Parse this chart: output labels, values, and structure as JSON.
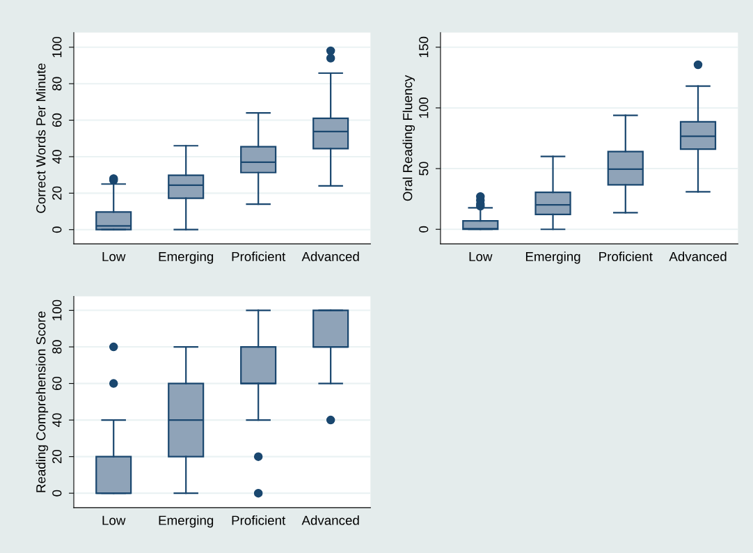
{
  "chart_data": [
    {
      "type": "box",
      "ylabel": "Correct Words Per Minute",
      "categories": [
        "Low",
        "Emerging",
        "Proficient",
        "Advanced"
      ],
      "ylim": [
        -7.8,
        108
      ],
      "yticks": [
        0,
        20,
        40,
        60,
        80,
        100
      ],
      "grid": "y",
      "color": "#8fa3b8",
      "boxes": [
        {
          "low": 0,
          "q1": 0,
          "median": 2,
          "q3": 9.7,
          "high": 25,
          "outliers": [
            27,
            28
          ]
        },
        {
          "low": 0,
          "q1": 17.2,
          "median": 24.4,
          "q3": 29.8,
          "high": 46
        },
        {
          "low": 14,
          "q1": 31.3,
          "median": 37,
          "q3": 45.5,
          "high": 64
        },
        {
          "low": 24,
          "q1": 44.4,
          "median": 53.8,
          "q3": 61,
          "high": 85.8,
          "outliers": [
            94,
            98
          ]
        }
      ]
    },
    {
      "type": "box",
      "ylabel": "Oral Reading Fluency",
      "categories": [
        "Low",
        "Emerging",
        "Proficient",
        "Advanced"
      ],
      "ylim": [
        -12,
        162
      ],
      "yticks": [
        0,
        50,
        100,
        150
      ],
      "grid": "y",
      "color": "#8fa3b8",
      "boxes": [
        {
          "low": 0,
          "q1": 0,
          "median": 0.5,
          "q3": 6.9,
          "high": 17.7,
          "outliers": [
            19,
            21,
            24,
            27
          ]
        },
        {
          "low": 0,
          "q1": 12.2,
          "median": 20.2,
          "q3": 30.5,
          "high": 60
        },
        {
          "low": 13.7,
          "q1": 36.6,
          "median": 49.6,
          "q3": 64,
          "high": 93.8
        },
        {
          "low": 30.9,
          "q1": 66,
          "median": 76.6,
          "q3": 88.6,
          "high": 118,
          "outliers": [
            135.5
          ]
        }
      ]
    },
    {
      "type": "box",
      "ylabel": "Reading Comprehension Score",
      "categories": [
        "Low",
        "Emerging",
        "Proficient",
        "Advanced"
      ],
      "ylim": [
        -7.9,
        107.6
      ],
      "yticks": [
        0,
        20,
        40,
        60,
        80,
        100
      ],
      "grid": "y",
      "color": "#8fa3b8",
      "boxes": [
        {
          "low": 0,
          "q1": 0,
          "median": 0,
          "q3": 20,
          "high": 40,
          "outliers": [
            60,
            80
          ]
        },
        {
          "low": 0,
          "q1": 20,
          "median": 40,
          "q3": 60,
          "high": 80
        },
        {
          "low": 40,
          "q1": 60,
          "median": 60,
          "q3": 80,
          "high": 100,
          "outliers": [
            20,
            0
          ]
        },
        {
          "low": 60,
          "q1": 80,
          "median": 80,
          "q3": 100,
          "high": 100,
          "outliers": [
            40
          ]
        }
      ]
    }
  ]
}
